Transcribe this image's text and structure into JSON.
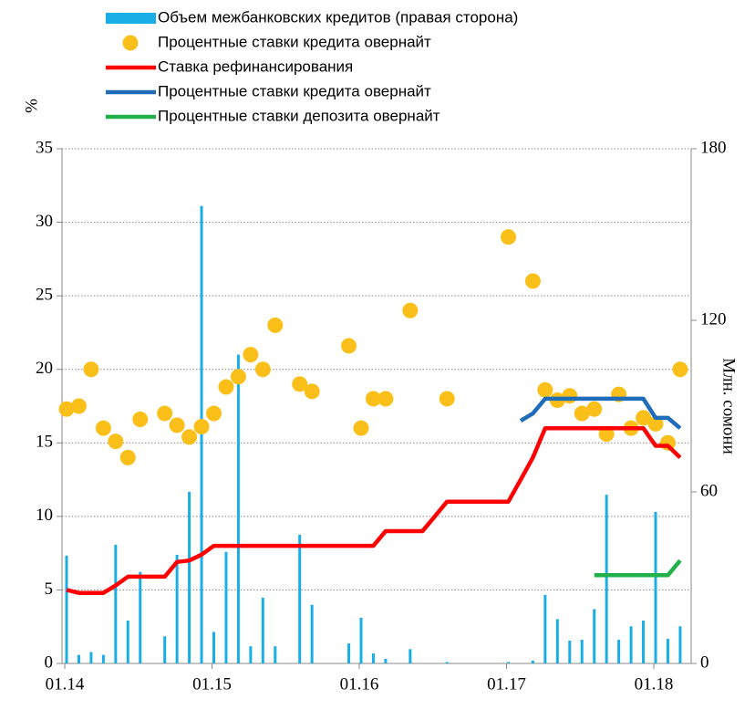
{
  "chart_data": {
    "type": "combo",
    "categories": [
      "01.14",
      null,
      null,
      null,
      null,
      null,
      null,
      null,
      null,
      null,
      null,
      null,
      "01.15",
      null,
      null,
      null,
      null,
      null,
      null,
      null,
      null,
      null,
      null,
      null,
      "01.16",
      null,
      null,
      null,
      null,
      null,
      null,
      null,
      null,
      null,
      null,
      null,
      "01.17",
      null,
      null,
      null,
      null,
      null,
      null,
      null,
      null,
      null,
      null,
      null,
      "01.18",
      null,
      null
    ],
    "y_label": "%",
    "y2_label": "Млн. сомони",
    "ylim": [
      0,
      35
    ],
    "yticks": [
      0,
      5,
      10,
      15,
      20,
      25,
      30,
      35
    ],
    "y2lim": [
      0,
      180
    ],
    "y2ticks": [
      0,
      60,
      120,
      180
    ],
    "grid": true,
    "series": [
      {
        "name": "Объем межбанковских кредитов (правая сторона)",
        "type": "bar",
        "axis": "y2",
        "color": "#1aaee6",
        "values": [
          37.7,
          3,
          4,
          3,
          41.5,
          15,
          32,
          null,
          9.5,
          38,
          60,
          160,
          11,
          39,
          108,
          6,
          23,
          6,
          null,
          45,
          20.5,
          null,
          null,
          7,
          16,
          3.5,
          1.6,
          null,
          5,
          null,
          null,
          0.5,
          null,
          null,
          null,
          null,
          0.5,
          null,
          1,
          24,
          15.5,
          8,
          8.3,
          19,
          59,
          8.3,
          13,
          15,
          53,
          8.6,
          13
        ]
      },
      {
        "name": "Процентные ставки кредита овернайт",
        "type": "scatter",
        "color": "#fbbf1a",
        "values": [
          17.3,
          17.5,
          20,
          16,
          15.1,
          14,
          16.6,
          null,
          17,
          16.2,
          15.4,
          16.1,
          17,
          18.8,
          19.5,
          21,
          20,
          23,
          null,
          19,
          18.5,
          null,
          null,
          21.6,
          16,
          18,
          18,
          null,
          24,
          null,
          null,
          18,
          null,
          null,
          null,
          null,
          29,
          null,
          26,
          18.6,
          17.9,
          18.2,
          17,
          17.3,
          15.6,
          18.3,
          16,
          16.7,
          16.3,
          15,
          20
        ]
      },
      {
        "name": "Ставка рефинансирования",
        "type": "line",
        "color": "#ff0000",
        "values": [
          5,
          4.8,
          4.8,
          4.8,
          5.3,
          5.9,
          5.9,
          5.9,
          5.9,
          6.9,
          7,
          7.4,
          8,
          8,
          8,
          8,
          8,
          8,
          8,
          8,
          8,
          8,
          8,
          8,
          8,
          8,
          9,
          9,
          9,
          9,
          10,
          11,
          11,
          11,
          11,
          11,
          11,
          12.5,
          14,
          16,
          16,
          16,
          16,
          16,
          16,
          16,
          16,
          16,
          14.8,
          14.8,
          14
        ]
      },
      {
        "name": "Процентные ставки кредита овернайт",
        "type": "line",
        "color": "#1f6cb8",
        "values": [
          null,
          null,
          null,
          null,
          null,
          null,
          null,
          null,
          null,
          null,
          null,
          null,
          null,
          null,
          null,
          null,
          null,
          null,
          null,
          null,
          null,
          null,
          null,
          null,
          null,
          null,
          null,
          null,
          null,
          null,
          null,
          null,
          null,
          null,
          null,
          null,
          null,
          16.5,
          17,
          18,
          18,
          18,
          18,
          18,
          18,
          18,
          18,
          18,
          16.7,
          16.7,
          16
        ]
      },
      {
        "name": "Процентные ставки депозита овернайт",
        "type": "line",
        "color": "#22b04a",
        "values": [
          null,
          null,
          null,
          null,
          null,
          null,
          null,
          null,
          null,
          null,
          null,
          null,
          null,
          null,
          null,
          null,
          null,
          null,
          null,
          null,
          null,
          null,
          null,
          null,
          null,
          null,
          null,
          null,
          null,
          null,
          null,
          null,
          null,
          null,
          null,
          null,
          null,
          null,
          null,
          null,
          null,
          null,
          null,
          6,
          6,
          6,
          6,
          6,
          6,
          6,
          7
        ]
      }
    ]
  }
}
